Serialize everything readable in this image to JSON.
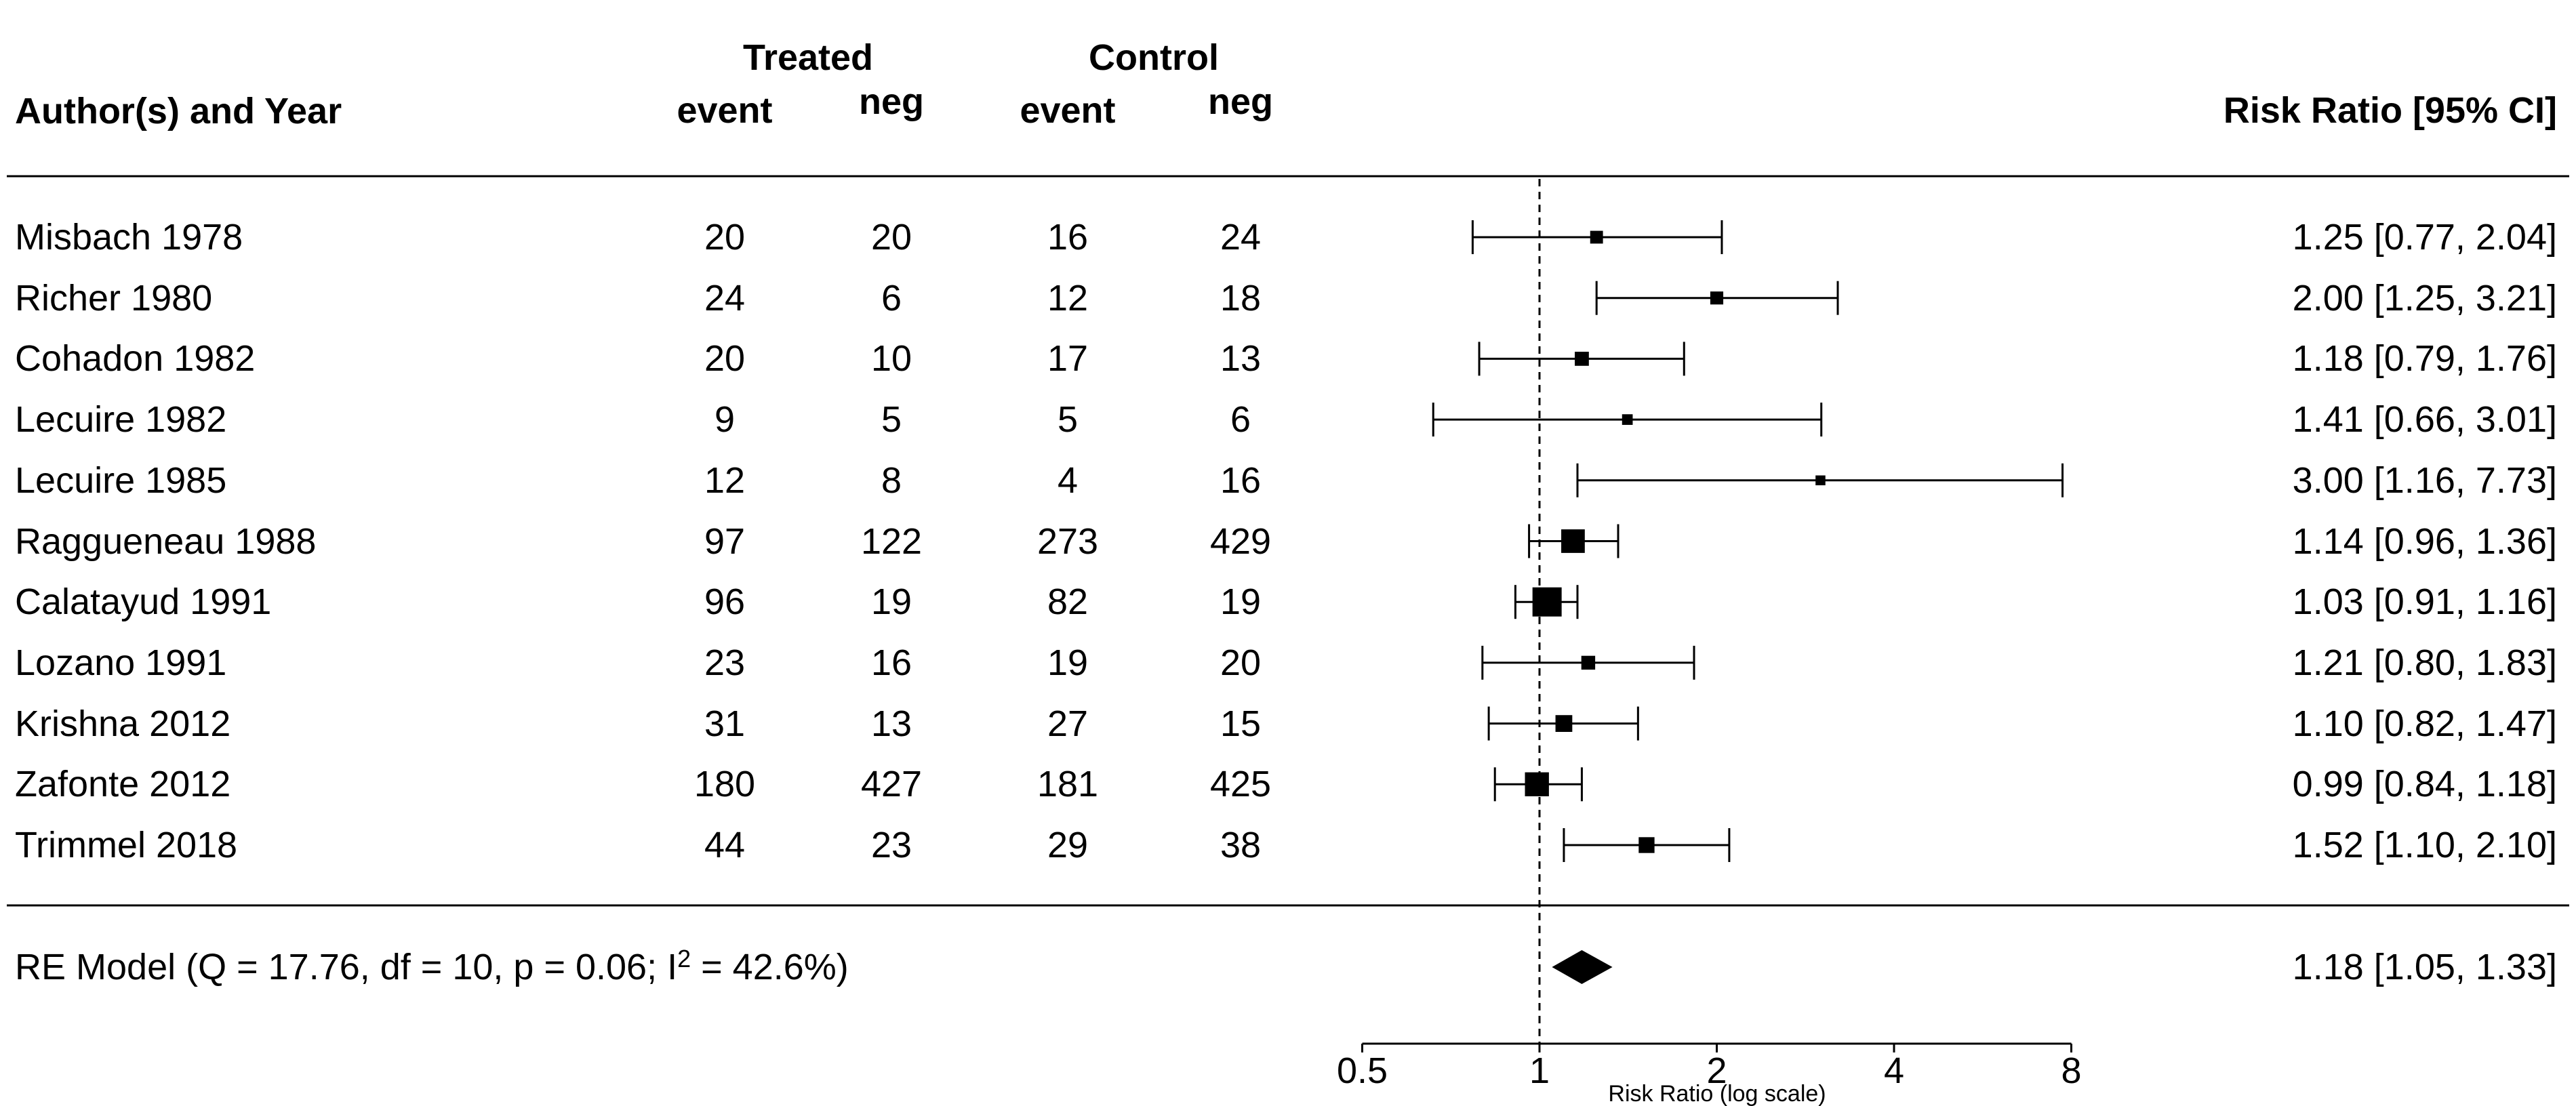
{
  "header": {
    "author_col": "Author(s) and Year",
    "treated_group": "Treated",
    "control_group": "Control",
    "treated_event": "event",
    "treated_neg": "neg",
    "control_event": "event",
    "control_neg": "neg",
    "rr_col": "Risk Ratio [95% CI]"
  },
  "summary_row": {
    "label_prefix": "RE Model (Q = 17.76, df = 10, p = 0.06; I",
    "label_sup": "2",
    "label_suffix": " = 42.6%)"
  },
  "chart_data": {
    "type": "forest",
    "title": "",
    "x_axis": {
      "label": "Risk Ratio (log scale)",
      "scale": "log2",
      "tick_labels": [
        "0.5",
        "1",
        "2",
        "4",
        "8"
      ],
      "tick_values": [
        0.5,
        1,
        2,
        4,
        8
      ],
      "range": [
        0.5,
        8
      ],
      "reference_line": 1
    },
    "columns": [
      "treated_event",
      "treated_neg",
      "control_event",
      "control_neg"
    ],
    "studies": [
      {
        "name": "Misbach 1978",
        "treated_event": "20",
        "treated_neg": "20",
        "control_event": "16",
        "control_neg": "24",
        "rr": 1.25,
        "ci_low": 0.77,
        "ci_high": 2.04,
        "label": "1.25 [0.77, 2.04]"
      },
      {
        "name": "Richer 1980",
        "treated_event": "24",
        "treated_neg": "6",
        "control_event": "12",
        "control_neg": "18",
        "rr": 2.0,
        "ci_low": 1.25,
        "ci_high": 3.21,
        "label": "2.00 [1.25, 3.21]"
      },
      {
        "name": "Cohadon 1982",
        "treated_event": "20",
        "treated_neg": "10",
        "control_event": "17",
        "control_neg": "13",
        "rr": 1.18,
        "ci_low": 0.79,
        "ci_high": 1.76,
        "label": "1.18 [0.79, 1.76]"
      },
      {
        "name": "Lecuire 1982",
        "treated_event": "9",
        "treated_neg": "5",
        "control_event": "5",
        "control_neg": "6",
        "rr": 1.41,
        "ci_low": 0.66,
        "ci_high": 3.01,
        "label": "1.41 [0.66, 3.01]"
      },
      {
        "name": "Lecuire 1985",
        "treated_event": "12",
        "treated_neg": "8",
        "control_event": "4",
        "control_neg": "16",
        "rr": 3.0,
        "ci_low": 1.16,
        "ci_high": 7.73,
        "label": "3.00 [1.16, 7.73]"
      },
      {
        "name": "Raggueneau 1988",
        "treated_event": "97",
        "treated_neg": "122",
        "control_event": "273",
        "control_neg": "429",
        "rr": 1.14,
        "ci_low": 0.96,
        "ci_high": 1.36,
        "label": "1.14 [0.96, 1.36]"
      },
      {
        "name": "Calatayud 1991",
        "treated_event": "96",
        "treated_neg": "19",
        "control_event": "82",
        "control_neg": "19",
        "rr": 1.03,
        "ci_low": 0.91,
        "ci_high": 1.16,
        "label": "1.03 [0.91, 1.16]"
      },
      {
        "name": "Lozano 1991",
        "treated_event": "23",
        "treated_neg": "16",
        "control_event": "19",
        "control_neg": "20",
        "rr": 1.21,
        "ci_low": 0.8,
        "ci_high": 1.83,
        "label": "1.21 [0.80, 1.83]"
      },
      {
        "name": "Krishna 2012",
        "treated_event": "31",
        "treated_neg": "13",
        "control_event": "27",
        "control_neg": "15",
        "rr": 1.1,
        "ci_low": 0.82,
        "ci_high": 1.47,
        "label": "1.10 [0.82, 1.47]"
      },
      {
        "name": "Zafonte 2012",
        "treated_event": "180",
        "treated_neg": "427",
        "control_event": "181",
        "control_neg": "425",
        "rr": 0.99,
        "ci_low": 0.84,
        "ci_high": 1.18,
        "label": "0.99 [0.84, 1.18]"
      },
      {
        "name": "Trimmel 2018",
        "treated_event": "44",
        "treated_neg": "23",
        "control_event": "29",
        "control_neg": "38",
        "rr": 1.52,
        "ci_low": 1.1,
        "ci_high": 2.1,
        "label": "1.52 [1.10, 2.10]"
      }
    ],
    "summary": {
      "rr": 1.18,
      "ci_low": 1.05,
      "ci_high": 1.33,
      "label": "1.18 [1.05, 1.33]"
    },
    "colors": {
      "marks": "#000000",
      "lines": "#000000",
      "background": "#ffffff"
    }
  }
}
